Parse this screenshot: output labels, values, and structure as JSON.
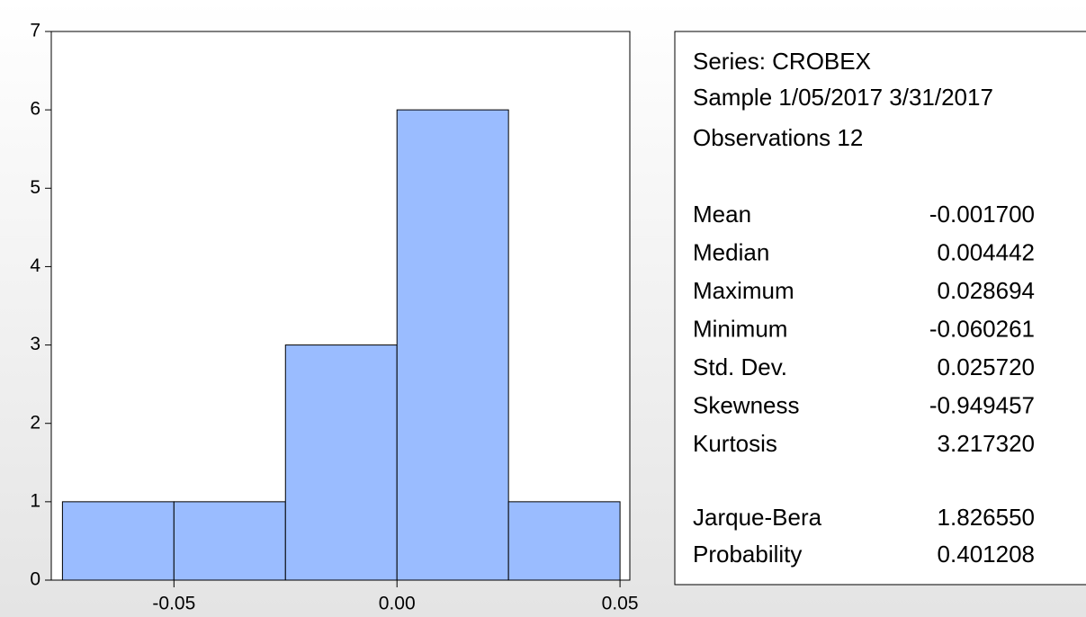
{
  "chart_data": {
    "type": "histogram",
    "bins": [
      -0.075,
      -0.05,
      -0.025,
      0,
      0.025,
      0.05
    ],
    "values": [
      1,
      1,
      3,
      6,
      1
    ],
    "color": "#9abcff",
    "xlim": [
      -0.0775,
      0.0522
    ],
    "xticks": [
      -0.05,
      {
        "value": 0,
        "label": "0.00"
      },
      0.05
    ],
    "ylim": [
      0,
      7
    ],
    "yticks": [
      0,
      1,
      2,
      3,
      4,
      5,
      6,
      7
    ]
  },
  "stats_panel": {
    "series": "Series: CROBEX",
    "sample": "Sample 1/05/2017 3/31/2017",
    "observations": "Observations 12",
    "rows": [
      [
        "Mean",
        "-0.001700"
      ],
      [
        "Median",
        "0.004442"
      ],
      [
        "Maximum",
        "0.028694"
      ],
      [
        "Minimum",
        "-0.060261"
      ],
      [
        "Std. Dev.",
        "0.025720"
      ],
      [
        "Skewness",
        "-0.949457"
      ],
      [
        "Kurtosis",
        "3.217320"
      ]
    ],
    "tests": [
      [
        "Jarque-Bera",
        "1.826550"
      ],
      [
        "Probability",
        "0.401208"
      ]
    ]
  }
}
